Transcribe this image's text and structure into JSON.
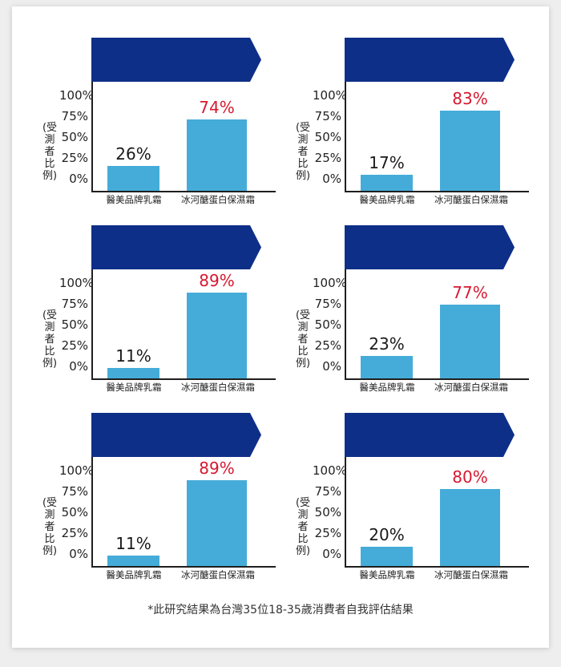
{
  "colors": {
    "banner": "#0e2f87",
    "bar": "#45acd9",
    "low_label": "#1a1a1a",
    "high_label": "#d6192f"
  },
  "chart_data": [
    {
      "type": "bar",
      "ylabel": "(受測者比例)",
      "yticks": [
        "100%",
        "75%",
        "50%",
        "25%",
        "0%"
      ],
      "ylim": [
        0,
        100
      ],
      "categories": [
        "醫美品牌乳霜",
        "冰河醣蛋白保濕霜"
      ],
      "values": [
        26,
        74
      ],
      "labels": [
        "26%",
        "74%"
      ]
    },
    {
      "type": "bar",
      "ylabel": "(受測者比例)",
      "yticks": [
        "100%",
        "75%",
        "50%",
        "25%",
        "0%"
      ],
      "ylim": [
        0,
        100
      ],
      "categories": [
        "醫美品牌乳霜",
        "冰河醣蛋白保濕霜"
      ],
      "values": [
        17,
        83
      ],
      "labels": [
        "17%",
        "83%"
      ]
    },
    {
      "type": "bar",
      "ylabel": "(受測者比例)",
      "yticks": [
        "100%",
        "75%",
        "50%",
        "25%",
        "0%"
      ],
      "ylim": [
        0,
        100
      ],
      "categories": [
        "醫美品牌乳霜",
        "冰河醣蛋白保濕霜"
      ],
      "values": [
        11,
        89
      ],
      "labels": [
        "11%",
        "89%"
      ]
    },
    {
      "type": "bar",
      "ylabel": "(受測者比例)",
      "yticks": [
        "100%",
        "75%",
        "50%",
        "25%",
        "0%"
      ],
      "ylim": [
        0,
        100
      ],
      "categories": [
        "醫美品牌乳霜",
        "冰河醣蛋白保濕霜"
      ],
      "values": [
        23,
        77
      ],
      "labels": [
        "23%",
        "77%"
      ]
    },
    {
      "type": "bar",
      "ylabel": "(受測者比例)",
      "yticks": [
        "100%",
        "75%",
        "50%",
        "25%",
        "0%"
      ],
      "ylim": [
        0,
        100
      ],
      "categories": [
        "醫美品牌乳霜",
        "冰河醣蛋白保濕霜"
      ],
      "values": [
        11,
        89
      ],
      "labels": [
        "11%",
        "89%"
      ]
    },
    {
      "type": "bar",
      "ylabel": "(受測者比例)",
      "yticks": [
        "100%",
        "75%",
        "50%",
        "25%",
        "0%"
      ],
      "ylim": [
        0,
        100
      ],
      "categories": [
        "醫美品牌乳霜",
        "冰河醣蛋白保濕霜"
      ],
      "values": [
        20,
        80
      ],
      "labels": [
        "20%",
        "80%"
      ]
    }
  ],
  "footnote": "*此研究結果為台灣35位18-35歲消費者自我評估結果"
}
